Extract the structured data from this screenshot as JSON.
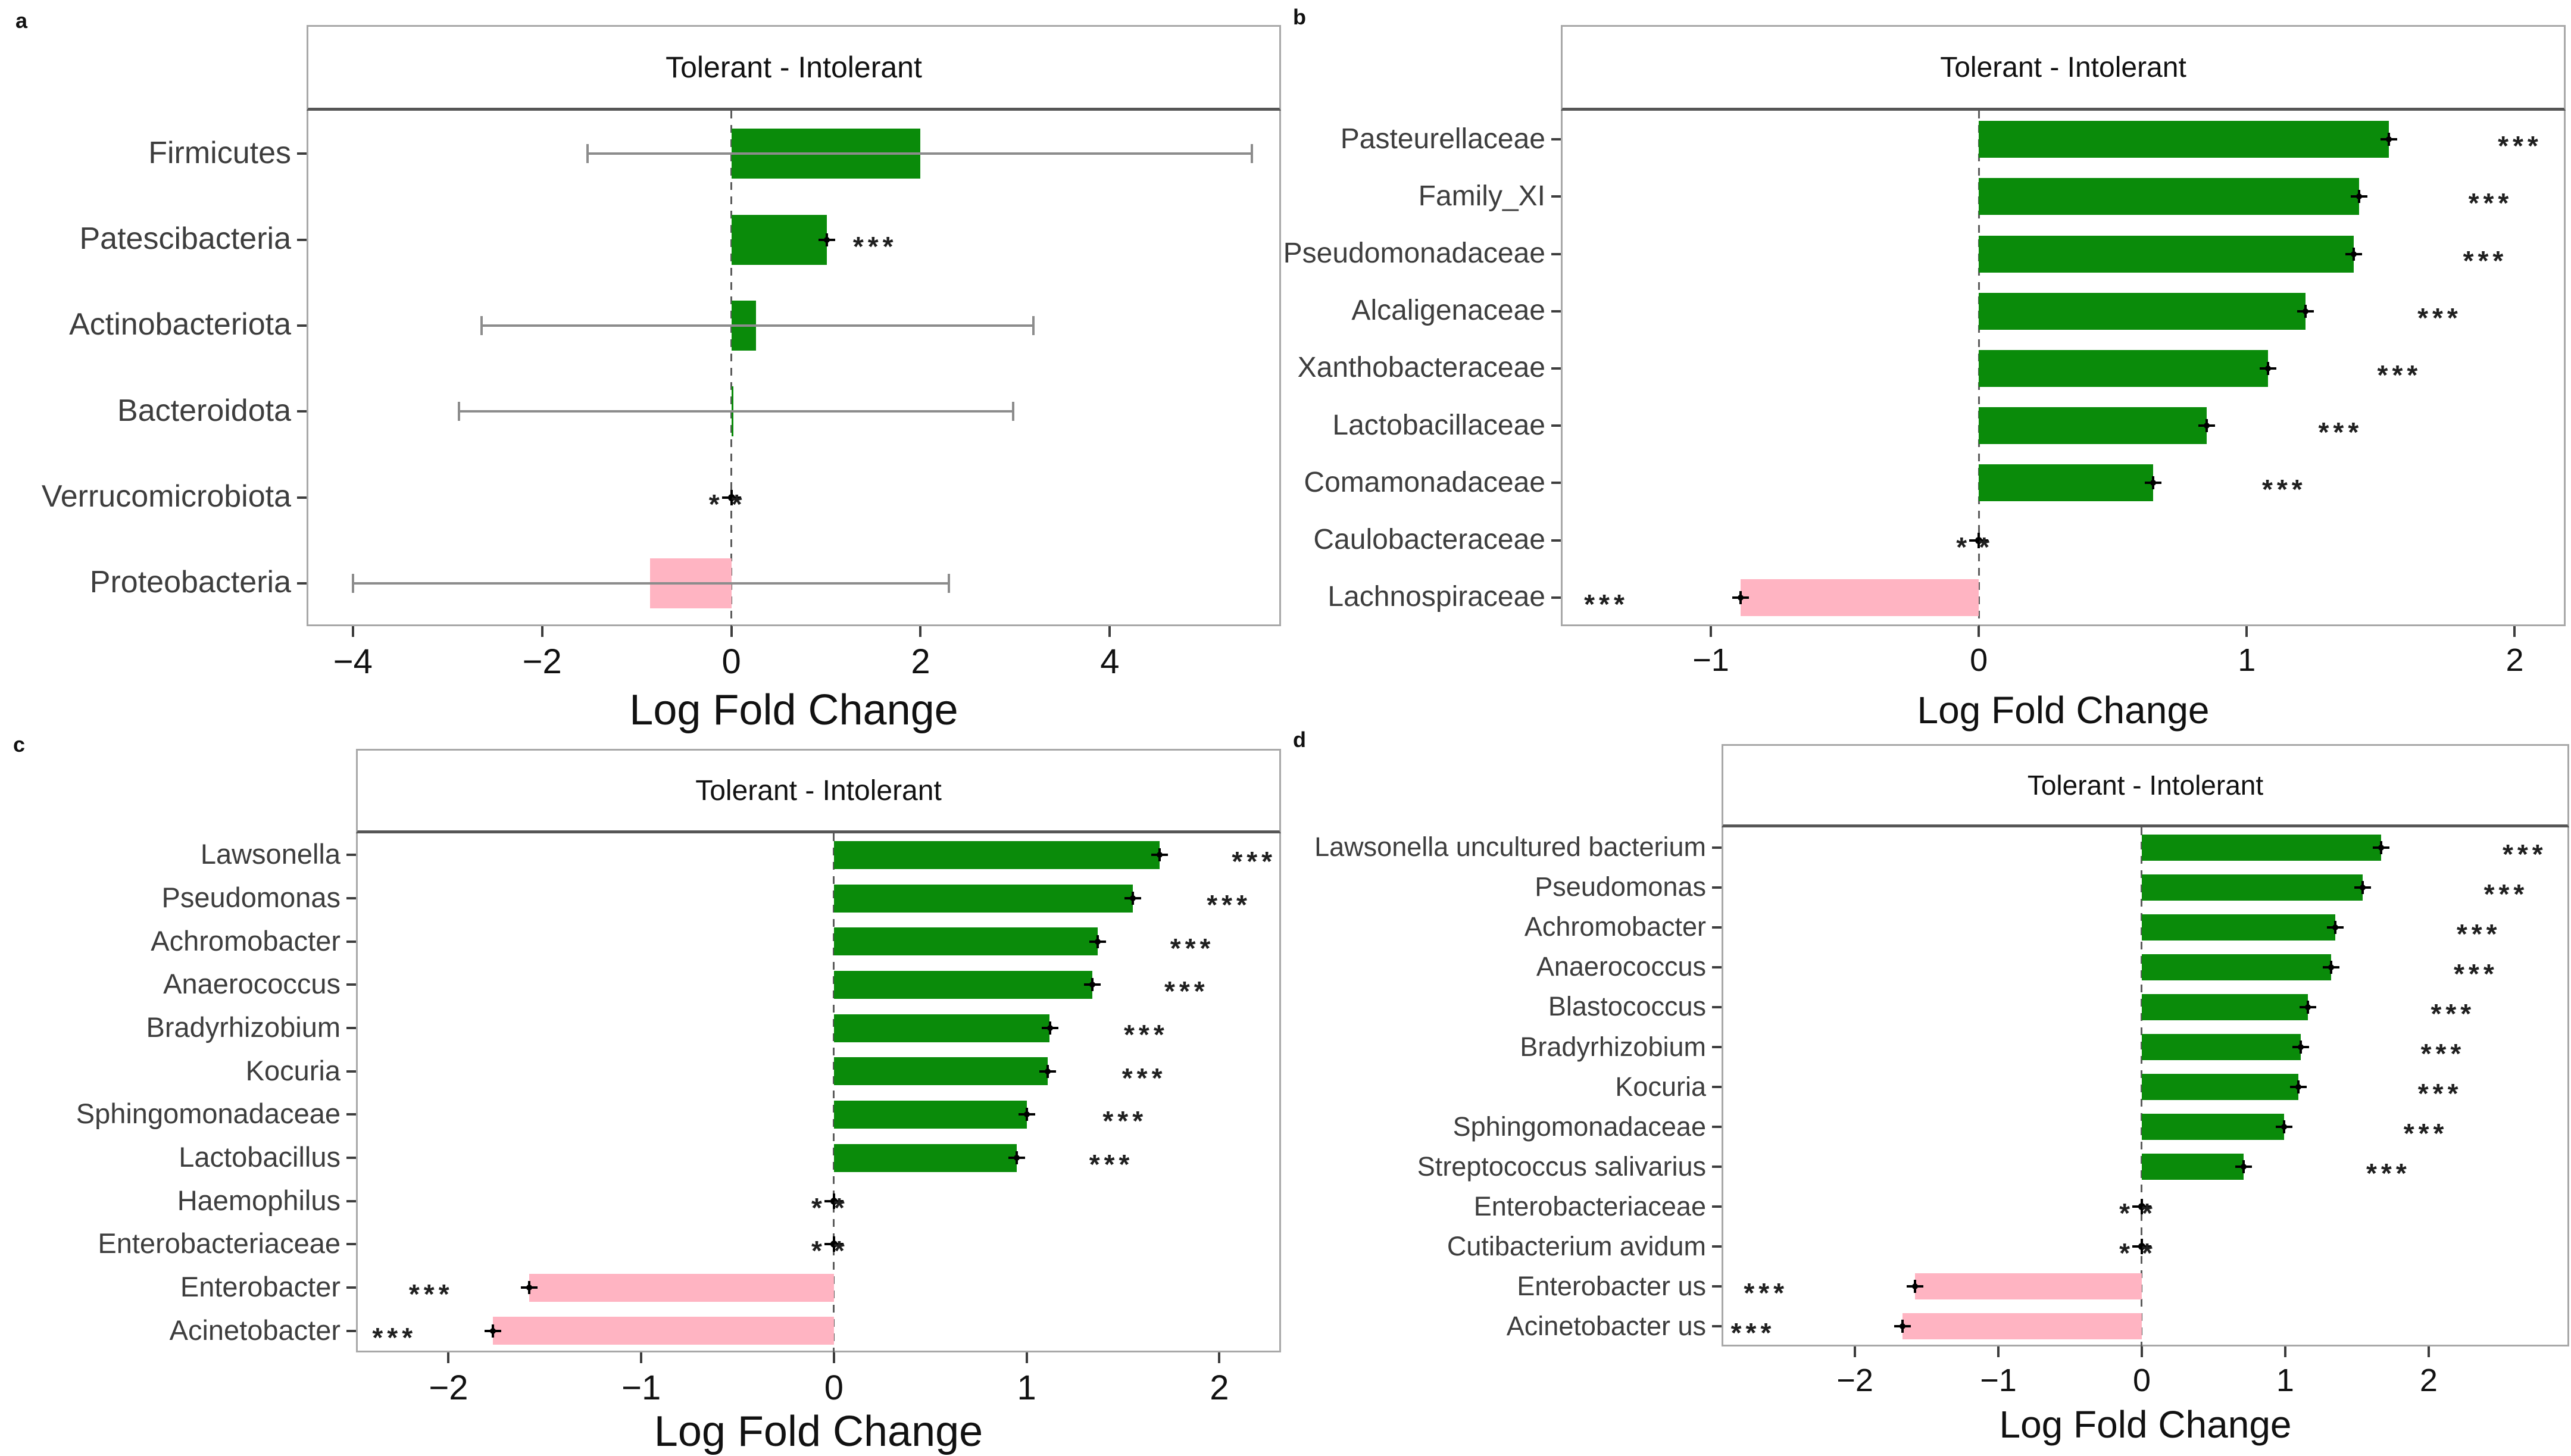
{
  "figure": {
    "colors": {
      "positive_bar": "#0a8b0a",
      "negative_bar": "#ffb4c2",
      "error_bar": "#8c8c8c",
      "marker": "#000000",
      "panel_border": "#a8a8a8",
      "strip_underline": "#565656",
      "zero_line": "#5c5c5c",
      "text": "#111111",
      "category_text": "#3d3d3d"
    }
  },
  "chart_data": [
    {
      "id": "a",
      "letter": "a",
      "type": "bar",
      "orientation": "horizontal",
      "title": "Tolerant - Intolerant",
      "xlabel": "Log Fold Change",
      "xlim": [
        -4.49,
        5.81
      ],
      "grid": false,
      "legend": "none",
      "xticks": [
        {
          "v": -4,
          "label": "−4"
        },
        {
          "v": -2,
          "label": "−2"
        },
        {
          "v": 0,
          "label": "0"
        },
        {
          "v": 2,
          "label": "2"
        },
        {
          "v": 4,
          "label": "4"
        }
      ],
      "categories": [
        "Firmicutes",
        "Patescibacteria",
        "Actinobacteriota",
        "Bacteroidota",
        "Verrucomicrobiota",
        "Proteobacteria"
      ],
      "values": [
        2.0,
        1.01,
        0.26,
        0.02,
        0.0,
        -0.86
      ],
      "significance": [
        "",
        "***",
        "",
        "",
        "**",
        ""
      ],
      "rows": [
        {
          "label": "Firmicutes",
          "value": 2.0,
          "color": "green",
          "err": [
            -1.52,
            5.5
          ],
          "tip": false,
          "point": false,
          "stars": "",
          "star_x": null
        },
        {
          "label": "Patescibacteria",
          "value": 1.01,
          "color": "green",
          "err": [
            0.93,
            1.09
          ],
          "tip": true,
          "point": false,
          "stars": "***",
          "star_x": 1.52
        },
        {
          "label": "Actinobacteriota",
          "value": 0.26,
          "color": "green",
          "err": [
            -2.64,
            3.19
          ],
          "tip": false,
          "point": false,
          "stars": "",
          "star_x": null
        },
        {
          "label": "Bacteroidota",
          "value": 0.02,
          "color": "green",
          "err": [
            -2.88,
            2.98
          ],
          "tip": false,
          "point": false,
          "stars": "",
          "star_x": null
        },
        {
          "label": "Verrucomicrobiota",
          "value": 0.0,
          "color": "none",
          "err": [
            -0.07,
            0.07
          ],
          "tip": false,
          "point": true,
          "stars": "**",
          "star_x": 0
        },
        {
          "label": "Proteobacteria",
          "value": -0.86,
          "color": "pink",
          "err": [
            -4.0,
            2.3
          ],
          "tip": false,
          "point": false,
          "stars": "",
          "star_x": null
        }
      ]
    },
    {
      "id": "b",
      "letter": "b",
      "type": "bar",
      "orientation": "horizontal",
      "title": "Tolerant - Intolerant",
      "xlabel": "Log Fold Change",
      "xlim": [
        -1.56,
        2.19
      ],
      "grid": false,
      "legend": "none",
      "xticks": [
        {
          "v": -1,
          "label": "−1"
        },
        {
          "v": 0,
          "label": "0"
        },
        {
          "v": 1,
          "label": "1"
        },
        {
          "v": 2,
          "label": "2"
        }
      ],
      "categories": [
        "Pasteurellaceae",
        "Family_XI",
        "Pseudomonadaceae",
        "Alcaligenaceae",
        "Xanthobacteraceae",
        "Lactobacillaceae",
        "Comamonadaceae",
        "Caulobacteraceae",
        "Lachnospiraceae"
      ],
      "values": [
        1.53,
        1.42,
        1.4,
        1.22,
        1.08,
        0.85,
        0.65,
        0.0,
        -0.89
      ],
      "significance": [
        "***",
        "***",
        "***",
        "***",
        "***",
        "***",
        "***",
        "**",
        "***"
      ],
      "rows": [
        {
          "label": "Pasteurellaceae",
          "value": 1.53,
          "color": "green",
          "err": null,
          "tip": true,
          "point": false,
          "stars": "***",
          "star_x": 2.02
        },
        {
          "label": "Family_XI",
          "value": 1.42,
          "color": "green",
          "err": null,
          "tip": true,
          "point": false,
          "stars": "***",
          "star_x": 1.91
        },
        {
          "label": "Pseudomonadaceae",
          "value": 1.4,
          "color": "green",
          "err": null,
          "tip": true,
          "point": false,
          "stars": "***",
          "star_x": 1.89
        },
        {
          "label": "Alcaligenaceae",
          "value": 1.22,
          "color": "green",
          "err": null,
          "tip": true,
          "point": false,
          "stars": "***",
          "star_x": 1.72
        },
        {
          "label": "Xanthobacteraceae",
          "value": 1.08,
          "color": "green",
          "err": null,
          "tip": true,
          "point": false,
          "stars": "***",
          "star_x": 1.57
        },
        {
          "label": "Lactobacillaceae",
          "value": 0.85,
          "color": "green",
          "err": null,
          "tip": true,
          "point": false,
          "stars": "***",
          "star_x": 1.35
        },
        {
          "label": "Comamonadaceae",
          "value": 0.65,
          "color": "green",
          "err": null,
          "tip": true,
          "point": false,
          "stars": "***",
          "star_x": 1.14
        },
        {
          "label": "Caulobacteraceae",
          "value": 0.0,
          "color": "none",
          "err": null,
          "tip": false,
          "point": true,
          "stars": "**",
          "star_x": 0
        },
        {
          "label": "Lachnospiraceae",
          "value": -0.89,
          "color": "pink",
          "err": null,
          "tip": true,
          "point": false,
          "stars": "***",
          "star_x": -1.39
        }
      ]
    },
    {
      "id": "c",
      "letter": "c",
      "type": "bar",
      "orientation": "horizontal",
      "title": "Tolerant - Intolerant",
      "xlabel": "Log Fold Change",
      "xlim": [
        -2.48,
        2.32
      ],
      "grid": false,
      "legend": "none",
      "xticks": [
        {
          "v": -2,
          "label": "−2"
        },
        {
          "v": -1,
          "label": "−1"
        },
        {
          "v": 0,
          "label": "0"
        },
        {
          "v": 1,
          "label": "1"
        },
        {
          "v": 2,
          "label": "2"
        }
      ],
      "categories": [
        "Lawsonella",
        "Pseudomonas",
        "Achromobacter",
        "Anaerococcus",
        "Bradyrhizobium",
        "Kocuria",
        "Sphingomonadaceae",
        "Lactobacillus",
        "Haemophilus",
        "Enterobacteriaceae",
        "Enterobacter",
        "Acinetobacter"
      ],
      "values": [
        1.69,
        1.55,
        1.37,
        1.34,
        1.12,
        1.11,
        1.0,
        0.95,
        0.0,
        0.0,
        -1.58,
        -1.77
      ],
      "significance": [
        "***",
        "***",
        "***",
        "***",
        "***",
        "***",
        "***",
        "***",
        "**",
        "**",
        "***",
        "***"
      ],
      "rows": [
        {
          "label": "Lawsonella",
          "value": 1.69,
          "color": "green",
          "err": null,
          "tip": true,
          "point": false,
          "stars": "***",
          "star_x": 2.18
        },
        {
          "label": "Pseudomonas",
          "value": 1.55,
          "color": "green",
          "err": null,
          "tip": true,
          "point": false,
          "stars": "***",
          "star_x": 2.05
        },
        {
          "label": "Achromobacter",
          "value": 1.37,
          "color": "green",
          "err": null,
          "tip": true,
          "point": false,
          "stars": "***",
          "star_x": 1.86
        },
        {
          "label": "Anaerococcus",
          "value": 1.34,
          "color": "green",
          "err": null,
          "tip": true,
          "point": false,
          "stars": "***",
          "star_x": 1.83
        },
        {
          "label": "Bradyrhizobium",
          "value": 1.12,
          "color": "green",
          "err": null,
          "tip": true,
          "point": false,
          "stars": "***",
          "star_x": 1.62
        },
        {
          "label": "Kocuria",
          "value": 1.11,
          "color": "green",
          "err": null,
          "tip": true,
          "point": false,
          "stars": "***",
          "star_x": 1.61
        },
        {
          "label": "Sphingomonadaceae",
          "value": 1.0,
          "color": "green",
          "err": null,
          "tip": true,
          "point": false,
          "stars": "***",
          "star_x": 1.51
        },
        {
          "label": "Lactobacillus",
          "value": 0.95,
          "color": "green",
          "err": null,
          "tip": true,
          "point": false,
          "stars": "***",
          "star_x": 1.44
        },
        {
          "label": "Haemophilus",
          "value": 0.0,
          "color": "none",
          "err": null,
          "tip": false,
          "point": true,
          "stars": "**",
          "star_x": 0
        },
        {
          "label": "Enterobacteriaceae",
          "value": 0.0,
          "color": "none",
          "err": null,
          "tip": false,
          "point": true,
          "stars": "**",
          "star_x": 0
        },
        {
          "label": "Enterobacter",
          "value": -1.58,
          "color": "pink",
          "err": null,
          "tip": true,
          "point": false,
          "stars": "***",
          "star_x": -2.09
        },
        {
          "label": "Acinetobacter",
          "value": -1.77,
          "color": "pink",
          "err": null,
          "tip": true,
          "point": false,
          "stars": "***",
          "star_x": -2.28
        }
      ]
    },
    {
      "id": "d",
      "letter": "d",
      "type": "bar",
      "orientation": "horizontal",
      "title": "Tolerant - Intolerant",
      "xlabel": "Log Fold Change",
      "xlim": [
        -2.93,
        2.98
      ],
      "grid": false,
      "legend": "none",
      "xticks": [
        {
          "v": -2,
          "label": "−2"
        },
        {
          "v": -1,
          "label": "−1"
        },
        {
          "v": 0,
          "label": "0"
        },
        {
          "v": 1,
          "label": "1"
        },
        {
          "v": 2,
          "label": "2"
        }
      ],
      "categories": [
        "Lawsonella uncultured bacterium",
        "Pseudomonas",
        "Achromobacter",
        "Anaerococcus",
        "Blastococcus",
        "Bradyrhizobium",
        "Kocuria",
        "Sphingomonadaceae",
        "Streptococcus salivarius",
        "Enterobacteriaceae",
        "Cutibacterium avidum",
        "Enterobacter us",
        "Acinetobacter us"
      ],
      "values": [
        1.67,
        1.54,
        1.35,
        1.32,
        1.16,
        1.11,
        1.09,
        0.99,
        0.71,
        0.0,
        0.0,
        -1.58,
        -1.67
      ],
      "significance": [
        "***",
        "***",
        "***",
        "***",
        "***",
        "***",
        "***",
        "***",
        "***",
        "**",
        "**",
        "***",
        "***"
      ],
      "rows": [
        {
          "label": "Lawsonella uncultured bacterium",
          "value": 1.67,
          "color": "green",
          "err": null,
          "tip": true,
          "point": false,
          "stars": "***",
          "star_x": 2.67
        },
        {
          "label": "Pseudomonas",
          "value": 1.54,
          "color": "green",
          "err": null,
          "tip": true,
          "point": false,
          "stars": "***",
          "star_x": 2.54
        },
        {
          "label": "Achromobacter",
          "value": 1.35,
          "color": "green",
          "err": null,
          "tip": true,
          "point": false,
          "stars": "***",
          "star_x": 2.35
        },
        {
          "label": "Anaerococcus",
          "value": 1.32,
          "color": "green",
          "err": null,
          "tip": true,
          "point": false,
          "stars": "***",
          "star_x": 2.33
        },
        {
          "label": "Blastococcus",
          "value": 1.16,
          "color": "green",
          "err": null,
          "tip": true,
          "point": false,
          "stars": "***",
          "star_x": 2.17
        },
        {
          "label": "Bradyrhizobium",
          "value": 1.11,
          "color": "green",
          "err": null,
          "tip": true,
          "point": false,
          "stars": "***",
          "star_x": 2.1
        },
        {
          "label": "Kocuria",
          "value": 1.09,
          "color": "green",
          "err": null,
          "tip": true,
          "point": false,
          "stars": "***",
          "star_x": 2.08
        },
        {
          "label": "Sphingomonadaceae",
          "value": 0.99,
          "color": "green",
          "err": null,
          "tip": true,
          "point": false,
          "stars": "***",
          "star_x": 1.98
        },
        {
          "label": "Streptococcus salivarius",
          "value": 0.71,
          "color": "green",
          "err": null,
          "tip": true,
          "point": false,
          "stars": "***",
          "star_x": 1.72
        },
        {
          "label": "Enterobacteriaceae",
          "value": 0.0,
          "color": "none",
          "err": null,
          "tip": false,
          "point": true,
          "stars": "**",
          "star_x": 0
        },
        {
          "label": "Cutibacterium avidum",
          "value": 0.0,
          "color": "none",
          "err": null,
          "tip": false,
          "point": true,
          "stars": "**",
          "star_x": 0
        },
        {
          "label": "Enterobacter us",
          "value": -1.58,
          "color": "pink",
          "err": null,
          "tip": true,
          "point": false,
          "stars": "***",
          "star_x": -2.62
        },
        {
          "label": "Acinetobacter us",
          "value": -1.67,
          "color": "pink",
          "err": null,
          "tip": true,
          "point": false,
          "stars": "***",
          "star_x": -2.71
        }
      ]
    }
  ]
}
